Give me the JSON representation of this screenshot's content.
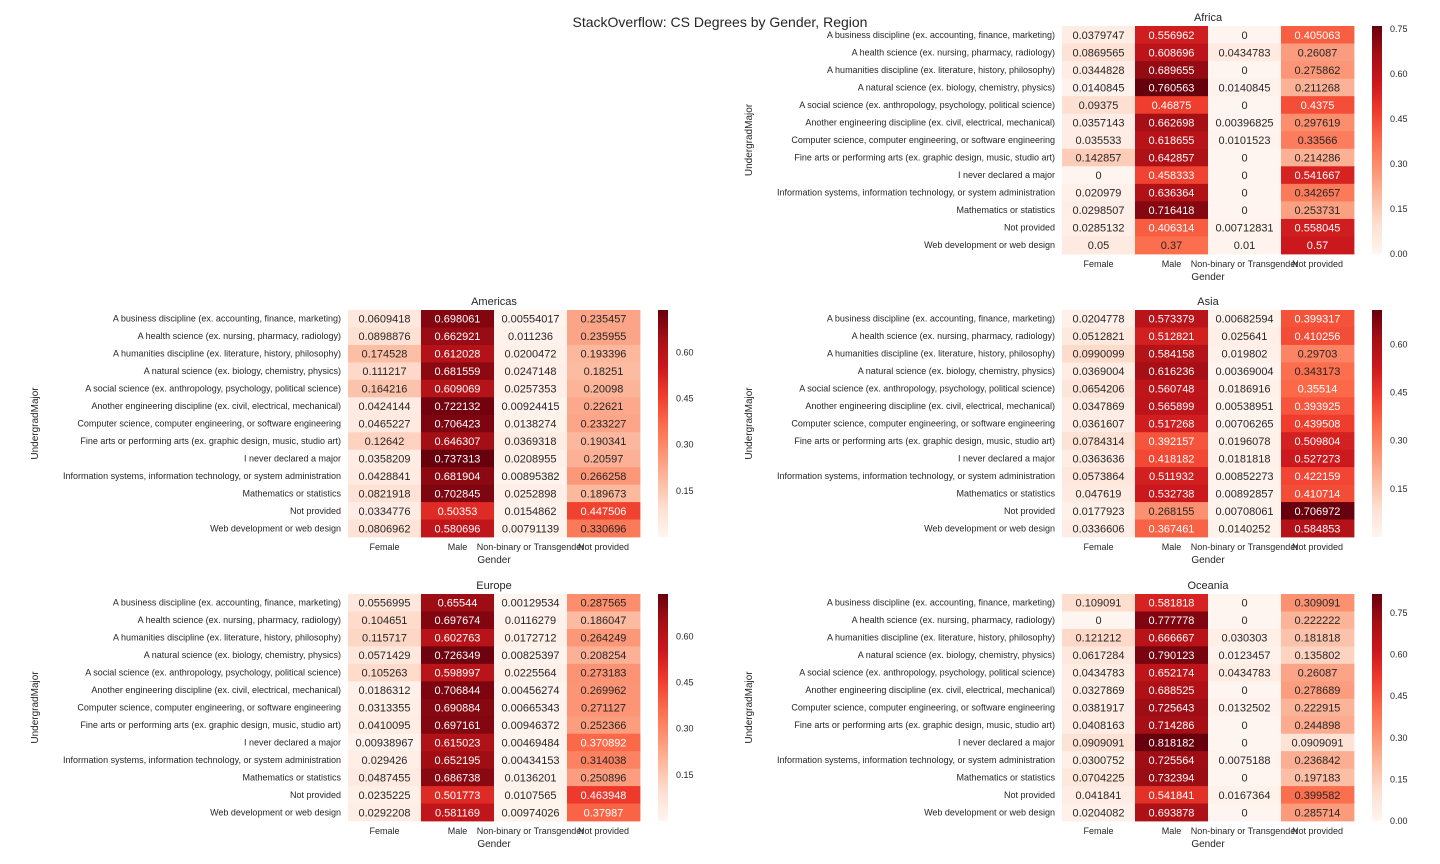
{
  "figure": {
    "title": "StackOverflow: CS Degrees by Gender, Region"
  },
  "chart_data": [
    {
      "type": "heatmap",
      "title": "Africa",
      "xlabel": "Gender",
      "ylabel": "UndergradMajor",
      "colormap": "Reds",
      "vmin": 0,
      "vmax": 0.760563,
      "colorbar_ticks": [
        "0.00",
        "0.15",
        "0.30",
        "0.45",
        "0.60",
        "0.75"
      ],
      "columns": [
        "Female",
        "Male",
        "Non-binary or Transgender",
        "Not provided"
      ],
      "rows": [
        "A business discipline (ex. accounting, finance, marketing)",
        "A health science (ex. nursing, pharmacy, radiology)",
        "A humanities discipline (ex. literature, history, philosophy)",
        "A natural science (ex. biology, chemistry, physics)",
        "A social science (ex. anthropology, psychology, political science)",
        "Another engineering discipline (ex. civil, electrical, mechanical)",
        "Computer science, computer engineering, or software engineering",
        "Fine arts or performing arts (ex. graphic design, music, studio art)",
        "I never declared a major",
        "Information systems, information technology, or system administration",
        "Mathematics or statistics",
        "Not provided",
        "Web development or web design"
      ],
      "labels": [
        [
          "0.0379747",
          "0.556962",
          "0",
          "0.405063"
        ],
        [
          "0.0869565",
          "0.608696",
          "0.0434783",
          "0.26087"
        ],
        [
          "0.0344828",
          "0.689655",
          "0",
          "0.275862"
        ],
        [
          "0.0140845",
          "0.760563",
          "0.0140845",
          "0.211268"
        ],
        [
          "0.09375",
          "0.46875",
          "0",
          "0.4375"
        ],
        [
          "0.0357143",
          "0.662698",
          "0.00396825",
          "0.297619"
        ],
        [
          "0.035533",
          "0.618655",
          "0.0101523",
          "0.33566"
        ],
        [
          "0.142857",
          "0.642857",
          "0",
          "0.214286"
        ],
        [
          "0",
          "0.458333",
          "0",
          "0.541667"
        ],
        [
          "0.020979",
          "0.636364",
          "0",
          "0.342657"
        ],
        [
          "0.0298507",
          "0.716418",
          "0",
          "0.253731"
        ],
        [
          "0.0285132",
          "0.406314",
          "0.00712831",
          "0.558045"
        ],
        [
          "0.05",
          "0.37",
          "0.01",
          "0.57"
        ]
      ]
    },
    {
      "type": "heatmap",
      "title": "Americas",
      "xlabel": "Gender",
      "ylabel": "UndergradMajor",
      "colormap": "Reds",
      "vmin": 0,
      "vmax": 0.737313,
      "colorbar_ticks": [
        "0.15",
        "0.30",
        "0.45",
        "0.60"
      ],
      "columns": [
        "Female",
        "Male",
        "Non-binary or Transgender",
        "Not provided"
      ],
      "rows": [
        "A business discipline (ex. accounting, finance, marketing)",
        "A health science (ex. nursing, pharmacy, radiology)",
        "A humanities discipline (ex. literature, history, philosophy)",
        "A natural science (ex. biology, chemistry, physics)",
        "A social science (ex. anthropology, psychology, political science)",
        "Another engineering discipline (ex. civil, electrical, mechanical)",
        "Computer science, computer engineering, or software engineering",
        "Fine arts or performing arts (ex. graphic design, music, studio art)",
        "I never declared a major",
        "Information systems, information technology, or system administration",
        "Mathematics or statistics",
        "Not provided",
        "Web development or web design"
      ],
      "labels": [
        [
          "0.0609418",
          "0.698061",
          "0.00554017",
          "0.235457"
        ],
        [
          "0.0898876",
          "0.662921",
          "0.011236",
          "0.235955"
        ],
        [
          "0.174528",
          "0.612028",
          "0.0200472",
          "0.193396"
        ],
        [
          "0.111217",
          "0.681559",
          "0.0247148",
          "0.18251"
        ],
        [
          "0.164216",
          "0.609069",
          "0.0257353",
          "0.20098"
        ],
        [
          "0.0424144",
          "0.722132",
          "0.00924415",
          "0.22621"
        ],
        [
          "0.0465227",
          "0.706423",
          "0.0138274",
          "0.233227"
        ],
        [
          "0.12642",
          "0.646307",
          "0.0369318",
          "0.190341"
        ],
        [
          "0.0358209",
          "0.737313",
          "0.0208955",
          "0.20597"
        ],
        [
          "0.0428841",
          "0.681904",
          "0.00895382",
          "0.266258"
        ],
        [
          "0.0821918",
          "0.702845",
          "0.0252898",
          "0.189673"
        ],
        [
          "0.0334776",
          "0.50353",
          "0.0154862",
          "0.447506"
        ],
        [
          "0.0806962",
          "0.580696",
          "0.00791139",
          "0.330696"
        ]
      ]
    },
    {
      "type": "heatmap",
      "title": "Asia",
      "xlabel": "Gender",
      "ylabel": "UndergradMajor",
      "colormap": "Reds",
      "vmin": 0,
      "vmax": 0.706972,
      "colorbar_ticks": [
        "0.15",
        "0.30",
        "0.45",
        "0.60"
      ],
      "columns": [
        "Female",
        "Male",
        "Non-binary or Transgender",
        "Not provided"
      ],
      "rows": [
        "A business discipline (ex. accounting, finance, marketing)",
        "A health science (ex. nursing, pharmacy, radiology)",
        "A humanities discipline (ex. literature, history, philosophy)",
        "A natural science (ex. biology, chemistry, physics)",
        "A social science (ex. anthropology, psychology, political science)",
        "Another engineering discipline (ex. civil, electrical, mechanical)",
        "Computer science, computer engineering, or software engineering",
        "Fine arts or performing arts (ex. graphic design, music, studio art)",
        "I never declared a major",
        "Information systems, information technology, or system administration",
        "Mathematics or statistics",
        "Not provided",
        "Web development or web design"
      ],
      "labels": [
        [
          "0.0204778",
          "0.573379",
          "0.00682594",
          "0.399317"
        ],
        [
          "0.0512821",
          "0.512821",
          "0.025641",
          "0.410256"
        ],
        [
          "0.0990099",
          "0.584158",
          "0.019802",
          "0.29703"
        ],
        [
          "0.0369004",
          "0.616236",
          "0.00369004",
          "0.343173"
        ],
        [
          "0.0654206",
          "0.560748",
          "0.0186916",
          "0.35514"
        ],
        [
          "0.0347869",
          "0.565899",
          "0.00538951",
          "0.393925"
        ],
        [
          "0.0361607",
          "0.517268",
          "0.00706265",
          "0.439508"
        ],
        [
          "0.0784314",
          "0.392157",
          "0.0196078",
          "0.509804"
        ],
        [
          "0.0363636",
          "0.418182",
          "0.0181818",
          "0.527273"
        ],
        [
          "0.0573864",
          "0.511932",
          "0.00852273",
          "0.422159"
        ],
        [
          "0.047619",
          "0.532738",
          "0.00892857",
          "0.410714"
        ],
        [
          "0.0177923",
          "0.268155",
          "0.00708061",
          "0.706972"
        ],
        [
          "0.0336606",
          "0.367461",
          "0.0140252",
          "0.584853"
        ]
      ]
    },
    {
      "type": "heatmap",
      "title": "Europe",
      "xlabel": "Gender",
      "ylabel": "UndergradMajor",
      "colormap": "Reds",
      "vmin": 0,
      "vmax": 0.737402,
      "colorbar_ticks": [
        "0.15",
        "0.30",
        "0.45",
        "0.60"
      ],
      "columns": [
        "Female",
        "Male",
        "Non-binary or Transgender",
        "Not provided"
      ],
      "rows": [
        "A business discipline (ex. accounting, finance, marketing)",
        "A health science (ex. nursing, pharmacy, radiology)",
        "A humanities discipline (ex. literature, history, philosophy)",
        "A natural science (ex. biology, chemistry, physics)",
        "A social science (ex. anthropology, psychology, political science)",
        "Another engineering discipline (ex. civil, electrical, mechanical)",
        "Computer science, computer engineering, or software engineering",
        "Fine arts or performing arts (ex. graphic design, music, studio art)",
        "I never declared a major",
        "Information systems, information technology, or system administration",
        "Mathematics or statistics",
        "Not provided",
        "Web development or web design"
      ],
      "labels": [
        [
          "0.0556995",
          "0.65544",
          "0.00129534",
          "0.287565"
        ],
        [
          "0.104651",
          "0.697674",
          "0.0116279",
          "0.186047"
        ],
        [
          "0.115717",
          "0.602763",
          "0.0172712",
          "0.264249"
        ],
        [
          "0.0571429",
          "0.726349",
          "0.00825397",
          "0.208254"
        ],
        [
          "0.105263",
          "0.598997",
          "0.0225564",
          "0.273183"
        ],
        [
          "0.0186312",
          "0.706844",
          "0.00456274",
          "0.269962"
        ],
        [
          "0.0313355",
          "0.690884",
          "0.00665343",
          "0.271127"
        ],
        [
          "0.0410095",
          "0.697161",
          "0.00946372",
          "0.252366"
        ],
        [
          "0.00938967",
          "0.615023",
          "0.00469484",
          "0.370892"
        ],
        [
          "0.029426",
          "0.652195",
          "0.00434153",
          "0.314038"
        ],
        [
          "0.0487455",
          "0.686738",
          "0.0136201",
          "0.250896"
        ],
        [
          "0.0235225",
          "0.501773",
          "0.0107565",
          "0.463948"
        ],
        [
          "0.0292208",
          "0.581169",
          "0.00974026",
          "0.37987"
        ]
      ]
    },
    {
      "type": "heatmap",
      "title": "Oceania",
      "xlabel": "Gender",
      "ylabel": "UndergradMajor",
      "colormap": "Reds",
      "vmin": 0,
      "vmax": 0.818182,
      "colorbar_ticks": [
        "0.00",
        "0.15",
        "0.30",
        "0.45",
        "0.60",
        "0.75"
      ],
      "columns": [
        "Female",
        "Male",
        "Non-binary or Transgender",
        "Not provided"
      ],
      "rows": [
        "A business discipline (ex. accounting, finance, marketing)",
        "A health science (ex. nursing, pharmacy, radiology)",
        "A humanities discipline (ex. literature, history, philosophy)",
        "A natural science (ex. biology, chemistry, physics)",
        "A social science (ex. anthropology, psychology, political science)",
        "Another engineering discipline (ex. civil, electrical, mechanical)",
        "Computer science, computer engineering, or software engineering",
        "Fine arts or performing arts (ex. graphic design, music, studio art)",
        "I never declared a major",
        "Information systems, information technology, or system administration",
        "Mathematics or statistics",
        "Not provided",
        "Web development or web design"
      ],
      "labels": [
        [
          "0.109091",
          "0.581818",
          "0",
          "0.309091"
        ],
        [
          "0",
          "0.777778",
          "0",
          "0.222222"
        ],
        [
          "0.121212",
          "0.666667",
          "0.030303",
          "0.181818"
        ],
        [
          "0.0617284",
          "0.790123",
          "0.0123457",
          "0.135802"
        ],
        [
          "0.0434783",
          "0.652174",
          "0.0434783",
          "0.26087"
        ],
        [
          "0.0327869",
          "0.688525",
          "0",
          "0.278689"
        ],
        [
          "0.0381917",
          "0.725643",
          "0.0132502",
          "0.222915"
        ],
        [
          "0.0408163",
          "0.714286",
          "0",
          "0.244898"
        ],
        [
          "0.0909091",
          "0.818182",
          "0",
          "0.0909091"
        ],
        [
          "0.0300752",
          "0.725564",
          "0.0075188",
          "0.236842"
        ],
        [
          "0.0704225",
          "0.732394",
          "0",
          "0.197183"
        ],
        [
          "0.041841",
          "0.541841",
          "0.0167364",
          "0.399582"
        ],
        [
          "0.0204082",
          "0.693878",
          "0",
          "0.285714"
        ]
      ]
    }
  ]
}
